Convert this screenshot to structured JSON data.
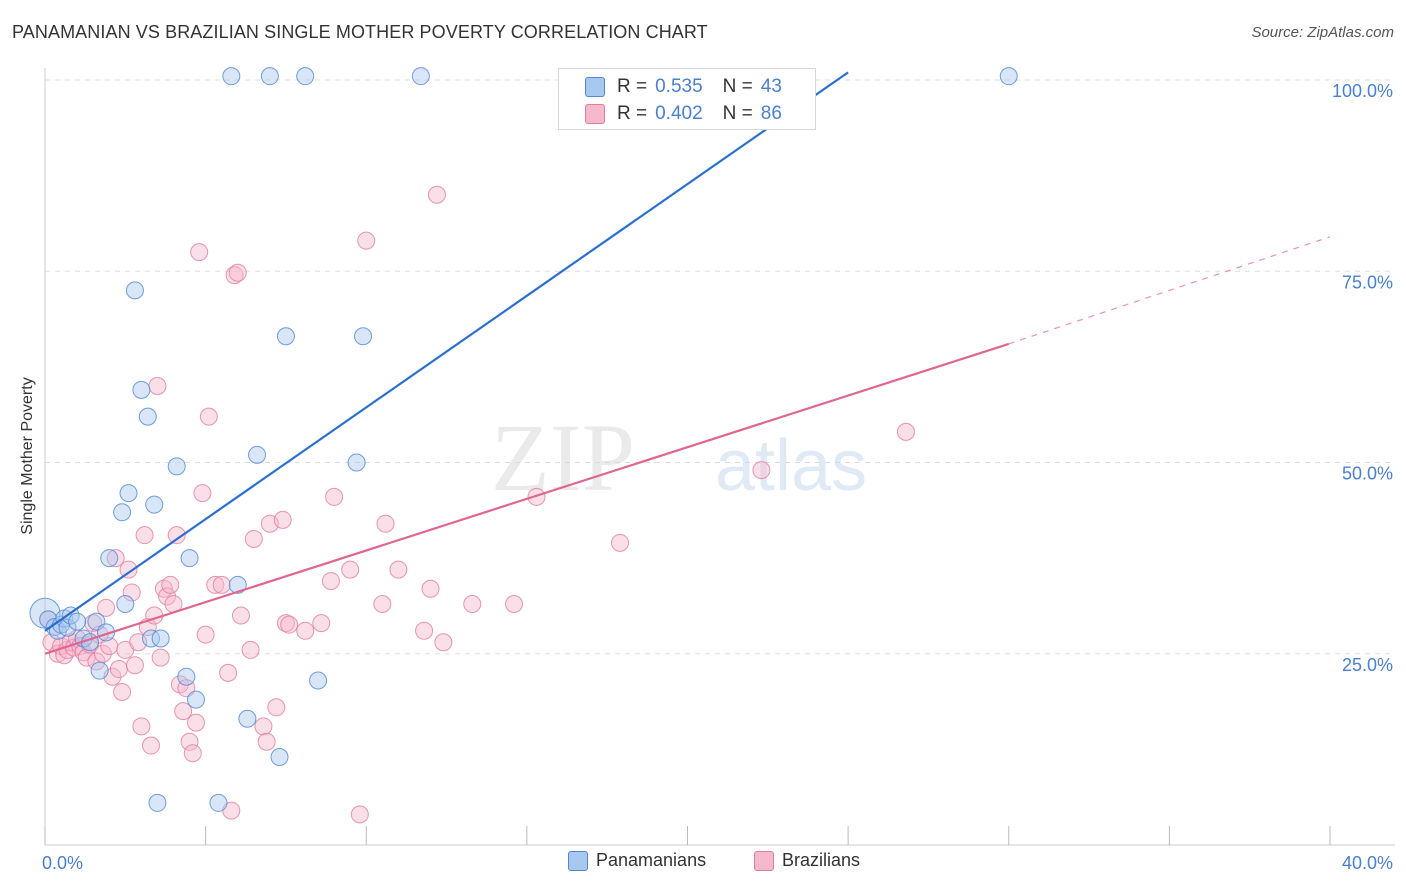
{
  "title": "PANAMANIAN VS BRAZILIAN SINGLE MOTHER POVERTY CORRELATION CHART",
  "source": "Source: ZipAtlas.com",
  "watermark": {
    "part1": "ZIP",
    "part2": "atlas"
  },
  "colors": {
    "blue_fill": "#a9c8f0",
    "blue_stroke": "#4f87d6",
    "blue_line": "#2a6fcf",
    "pink_fill": "#f6b8cb",
    "pink_stroke": "#e07d9e",
    "pink_line": "#e06690",
    "value_text": "#4a7fd0",
    "grid": "#dddddd"
  },
  "legend_top": {
    "items": [
      {
        "r_label": "R =",
        "r_value": "0.535",
        "n_label": "N =",
        "n_value": "43"
      },
      {
        "r_label": "R =",
        "r_value": "0.402",
        "n_label": "N =",
        "n_value": "86"
      }
    ]
  },
  "legend_bottom": {
    "items": [
      {
        "label": "Panamanians"
      },
      {
        "label": "Brazilians"
      }
    ]
  },
  "chart_data": {
    "type": "scatter",
    "title": "PANAMANIAN VS BRAZILIAN SINGLE MOTHER POVERTY CORRELATION CHART",
    "xlabel": "",
    "ylabel": "Single Mother Poverty",
    "xlim": [
      0,
      40
    ],
    "ylim": [
      0,
      100
    ],
    "x_tick_labels": [
      "0.0%",
      "40.0%"
    ],
    "y_tick_labels": [
      "25.0%",
      "50.0%",
      "75.0%",
      "100.0%"
    ],
    "y_ticks": [
      25,
      50,
      75,
      100
    ],
    "grid": true,
    "legend_position": "top-center",
    "series": [
      {
        "name": "Panamanians",
        "color": "blue",
        "trend": {
          "x0": 0,
          "y0": 28.0,
          "x1": 25.0,
          "y1": 101.0,
          "dashed_to": null
        },
        "points": [
          [
            0.0,
            30.3
          ],
          [
            0.1,
            29.5
          ],
          [
            0.3,
            28.5
          ],
          [
            0.4,
            28.0
          ],
          [
            0.5,
            28.8
          ],
          [
            0.6,
            29.6
          ],
          [
            0.7,
            28.4
          ],
          [
            0.8,
            30.0
          ],
          [
            1.0,
            29.2
          ],
          [
            1.2,
            27.0
          ],
          [
            1.4,
            26.5
          ],
          [
            1.6,
            29.2
          ],
          [
            1.7,
            22.8
          ],
          [
            1.9,
            27.8
          ],
          [
            2.0,
            37.5
          ],
          [
            2.4,
            43.5
          ],
          [
            2.5,
            31.5
          ],
          [
            2.6,
            46.0
          ],
          [
            2.8,
            72.5
          ],
          [
            3.0,
            59.5
          ],
          [
            3.2,
            56.0
          ],
          [
            3.3,
            27.0
          ],
          [
            3.4,
            44.5
          ],
          [
            3.5,
            5.5
          ],
          [
            3.6,
            27.0
          ],
          [
            4.1,
            49.5
          ],
          [
            4.4,
            22.0
          ],
          [
            4.5,
            37.5
          ],
          [
            4.7,
            19.0
          ],
          [
            5.4,
            5.5
          ],
          [
            5.8,
            100.5
          ],
          [
            6.0,
            34.0
          ],
          [
            6.3,
            16.5
          ],
          [
            6.6,
            51.0
          ],
          [
            7.0,
            100.5
          ],
          [
            7.3,
            11.5
          ],
          [
            7.5,
            66.5
          ],
          [
            8.1,
            100.5
          ],
          [
            8.5,
            21.5
          ],
          [
            9.7,
            50.0
          ],
          [
            9.9,
            66.5
          ],
          [
            11.7,
            100.5
          ],
          [
            30.0,
            100.5
          ]
        ]
      },
      {
        "name": "Brazilians",
        "color": "pink",
        "trend": {
          "x0": 0,
          "y0": 25.0,
          "x1": 30.0,
          "y1": 65.5,
          "dashed_to": [
            40.0,
            79.5
          ]
        },
        "points": [
          [
            0.1,
            29.5
          ],
          [
            0.2,
            26.5
          ],
          [
            0.4,
            25.0
          ],
          [
            0.5,
            26.0
          ],
          [
            0.6,
            24.8
          ],
          [
            0.7,
            25.5
          ],
          [
            0.8,
            26.5
          ],
          [
            0.9,
            25.8
          ],
          [
            1.0,
            27.0
          ],
          [
            1.1,
            26.0
          ],
          [
            1.2,
            25.2
          ],
          [
            1.3,
            24.5
          ],
          [
            1.4,
            26.2
          ],
          [
            1.5,
            29.0
          ],
          [
            1.6,
            24.0
          ],
          [
            1.7,
            27.5
          ],
          [
            1.8,
            25.0
          ],
          [
            1.9,
            31.0
          ],
          [
            2.0,
            26.0
          ],
          [
            2.1,
            22.0
          ],
          [
            2.2,
            37.5
          ],
          [
            2.3,
            23.0
          ],
          [
            2.4,
            20.0
          ],
          [
            2.5,
            25.5
          ],
          [
            2.6,
            36.0
          ],
          [
            2.7,
            33.0
          ],
          [
            2.8,
            23.5
          ],
          [
            2.9,
            26.5
          ],
          [
            3.0,
            15.5
          ],
          [
            3.1,
            40.5
          ],
          [
            3.2,
            28.5
          ],
          [
            3.3,
            13.0
          ],
          [
            3.4,
            30.0
          ],
          [
            3.5,
            60.0
          ],
          [
            3.6,
            24.5
          ],
          [
            3.7,
            33.5
          ],
          [
            3.8,
            32.5
          ],
          [
            3.9,
            34.0
          ],
          [
            4.0,
            31.5
          ],
          [
            4.1,
            40.5
          ],
          [
            4.2,
            21.0
          ],
          [
            4.3,
            17.5
          ],
          [
            4.4,
            20.5
          ],
          [
            4.5,
            13.5
          ],
          [
            4.6,
            12.0
          ],
          [
            4.7,
            16.0
          ],
          [
            4.8,
            77.5
          ],
          [
            4.9,
            46.0
          ],
          [
            5.0,
            27.5
          ],
          [
            5.1,
            56.0
          ],
          [
            5.3,
            34.0
          ],
          [
            5.5,
            34.0
          ],
          [
            5.7,
            22.5
          ],
          [
            5.8,
            4.5
          ],
          [
            5.9,
            74.5
          ],
          [
            6.0,
            74.8
          ],
          [
            6.1,
            30.0
          ],
          [
            6.4,
            25.5
          ],
          [
            6.5,
            40.0
          ],
          [
            6.8,
            15.5
          ],
          [
            6.9,
            13.5
          ],
          [
            7.0,
            42.0
          ],
          [
            7.2,
            18.0
          ],
          [
            7.4,
            42.5
          ],
          [
            7.5,
            29.0
          ],
          [
            7.6,
            28.8
          ],
          [
            8.1,
            28.0
          ],
          [
            8.6,
            29.0
          ],
          [
            8.9,
            34.5
          ],
          [
            9.0,
            45.5
          ],
          [
            9.5,
            36.0
          ],
          [
            9.8,
            4.0
          ],
          [
            10.0,
            79.0
          ],
          [
            10.5,
            31.5
          ],
          [
            10.6,
            42.0
          ],
          [
            11.0,
            36.0
          ],
          [
            11.8,
            28.0
          ],
          [
            12.0,
            33.5
          ],
          [
            12.2,
            85.0
          ],
          [
            12.4,
            26.5
          ],
          [
            13.3,
            31.5
          ],
          [
            14.6,
            31.5
          ],
          [
            15.3,
            45.5
          ],
          [
            17.9,
            39.5
          ],
          [
            22.3,
            49.0
          ],
          [
            26.8,
            54.0
          ]
        ]
      }
    ]
  }
}
